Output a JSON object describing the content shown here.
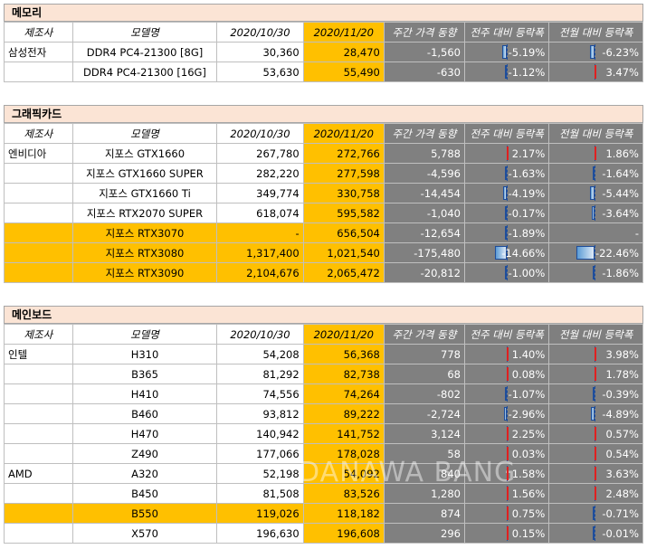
{
  "headers": {
    "mfr": "제조사",
    "model": "모델명",
    "d1": "2020/10/30",
    "d2": "2020/11/20",
    "weekly": "주간 가격 동향",
    "wow": "전주 대비 등락폭",
    "mom": "전월 대비 등락폭"
  },
  "colors": {
    "accent": "#ffc000",
    "gray": "#808080",
    "title_bg": "#fbe4d5",
    "neg_bar": "#5b9bd5",
    "pos_bar": "#e02020"
  },
  "sections": [
    {
      "title": "메모리",
      "rows": [
        {
          "mfr": "삼성전자",
          "model": "DDR4 PC4-21300 [8G]",
          "d1": "30,360",
          "d2": "28,470",
          "weekly": "-1,560",
          "wow": "-5.19%",
          "wow_v": -5.19,
          "mom": "-6.23%",
          "mom_v": -6.23,
          "hl": false
        },
        {
          "mfr": "",
          "model": "DDR4 PC4-21300 [16G]",
          "d1": "53,630",
          "d2": "55,490",
          "weekly": "-630",
          "wow": "-1.12%",
          "wow_v": -1.12,
          "mom": "3.47%",
          "mom_v": 3.47,
          "hl": false
        }
      ]
    },
    {
      "title": "그래픽카드",
      "rows": [
        {
          "mfr": "엔비디아",
          "model": "지포스 GTX1660",
          "d1": "267,780",
          "d2": "272,766",
          "weekly": "5,788",
          "wow": "2.17%",
          "wow_v": 2.17,
          "mom": "1.86%",
          "mom_v": 1.86,
          "hl": false
        },
        {
          "mfr": "",
          "model": "지포스 GTX1660 SUPER",
          "d1": "282,220",
          "d2": "277,598",
          "weekly": "-4,596",
          "wow": "-1.63%",
          "wow_v": -1.63,
          "mom": "-1.64%",
          "mom_v": -1.64,
          "hl": false
        },
        {
          "mfr": "",
          "model": "지포스 GTX1660 Ti",
          "d1": "349,774",
          "d2": "330,758",
          "weekly": "-14,454",
          "wow": "-4.19%",
          "wow_v": -4.19,
          "mom": "-5.44%",
          "mom_v": -5.44,
          "hl": false
        },
        {
          "mfr": "",
          "model": "지포스 RTX2070 SUPER",
          "d1": "618,074",
          "d2": "595,582",
          "weekly": "-1,040",
          "wow": "-0.17%",
          "wow_v": -0.17,
          "mom": "-3.64%",
          "mom_v": -3.64,
          "hl": false
        },
        {
          "mfr": "",
          "model": "지포스 RTX3070",
          "d1": "-",
          "d2": "656,504",
          "weekly": "-12,654",
          "wow": "-1.89%",
          "wow_v": -1.89,
          "mom": "-",
          "mom_v": 0,
          "hl": true
        },
        {
          "mfr": "",
          "model": "지포스 RTX3080",
          "d1": "1,317,400",
          "d2": "1,021,540",
          "weekly": "-175,480",
          "wow": "-14.66%",
          "wow_v": -14.66,
          "mom": "-22.46%",
          "mom_v": -22.46,
          "hl": true
        },
        {
          "mfr": "",
          "model": "지포스 RTX3090",
          "d1": "2,104,676",
          "d2": "2,065,472",
          "weekly": "-20,812",
          "wow": "-1.00%",
          "wow_v": -1.0,
          "mom": "-1.86%",
          "mom_v": -1.86,
          "hl": true
        }
      ]
    },
    {
      "title": "메인보드",
      "rows": [
        {
          "mfr": "인텔",
          "model": "H310",
          "d1": "54,208",
          "d2": "56,368",
          "weekly": "778",
          "wow": "1.40%",
          "wow_v": 1.4,
          "mom": "3.98%",
          "mom_v": 3.98,
          "hl": false
        },
        {
          "mfr": "",
          "model": "B365",
          "d1": "81,292",
          "d2": "82,738",
          "weekly": "68",
          "wow": "0.08%",
          "wow_v": 0.08,
          "mom": "1.78%",
          "mom_v": 1.78,
          "hl": false
        },
        {
          "mfr": "",
          "model": "H410",
          "d1": "74,556",
          "d2": "74,264",
          "weekly": "-802",
          "wow": "-1.07%",
          "wow_v": -1.07,
          "mom": "-0.39%",
          "mom_v": -0.39,
          "hl": false
        },
        {
          "mfr": "",
          "model": "B460",
          "d1": "93,812",
          "d2": "89,222",
          "weekly": "-2,724",
          "wow": "-2.96%",
          "wow_v": -2.96,
          "mom": "-4.89%",
          "mom_v": -4.89,
          "hl": false
        },
        {
          "mfr": "",
          "model": "H470",
          "d1": "140,942",
          "d2": "141,752",
          "weekly": "3,124",
          "wow": "2.25%",
          "wow_v": 2.25,
          "mom": "0.57%",
          "mom_v": 0.57,
          "hl": false
        },
        {
          "mfr": "",
          "model": "Z490",
          "d1": "177,066",
          "d2": "178,028",
          "weekly": "58",
          "wow": "0.03%",
          "wow_v": 0.03,
          "mom": "0.54%",
          "mom_v": 0.54,
          "hl": false
        },
        {
          "mfr": "AMD",
          "model": "A320",
          "d1": "52,198",
          "d2": "54,092",
          "weekly": "840",
          "wow": "1.58%",
          "wow_v": 1.58,
          "mom": "3.63%",
          "mom_v": 3.63,
          "hl": false
        },
        {
          "mfr": "",
          "model": "B450",
          "d1": "81,508",
          "d2": "83,526",
          "weekly": "1,280",
          "wow": "1.56%",
          "wow_v": 1.56,
          "mom": "2.48%",
          "mom_v": 2.48,
          "hl": false
        },
        {
          "mfr": "",
          "model": "B550",
          "d1": "119,026",
          "d2": "118,182",
          "weekly": "874",
          "wow": "0.75%",
          "wow_v": 0.75,
          "mom": "-0.71%",
          "mom_v": -0.71,
          "hl": true
        },
        {
          "mfr": "",
          "model": "X570",
          "d1": "196,630",
          "d2": "196,608",
          "weekly": "296",
          "wow": "0.15%",
          "wow_v": 0.15,
          "mom": "-0.01%",
          "mom_v": -0.01,
          "hl": false
        }
      ]
    }
  ]
}
